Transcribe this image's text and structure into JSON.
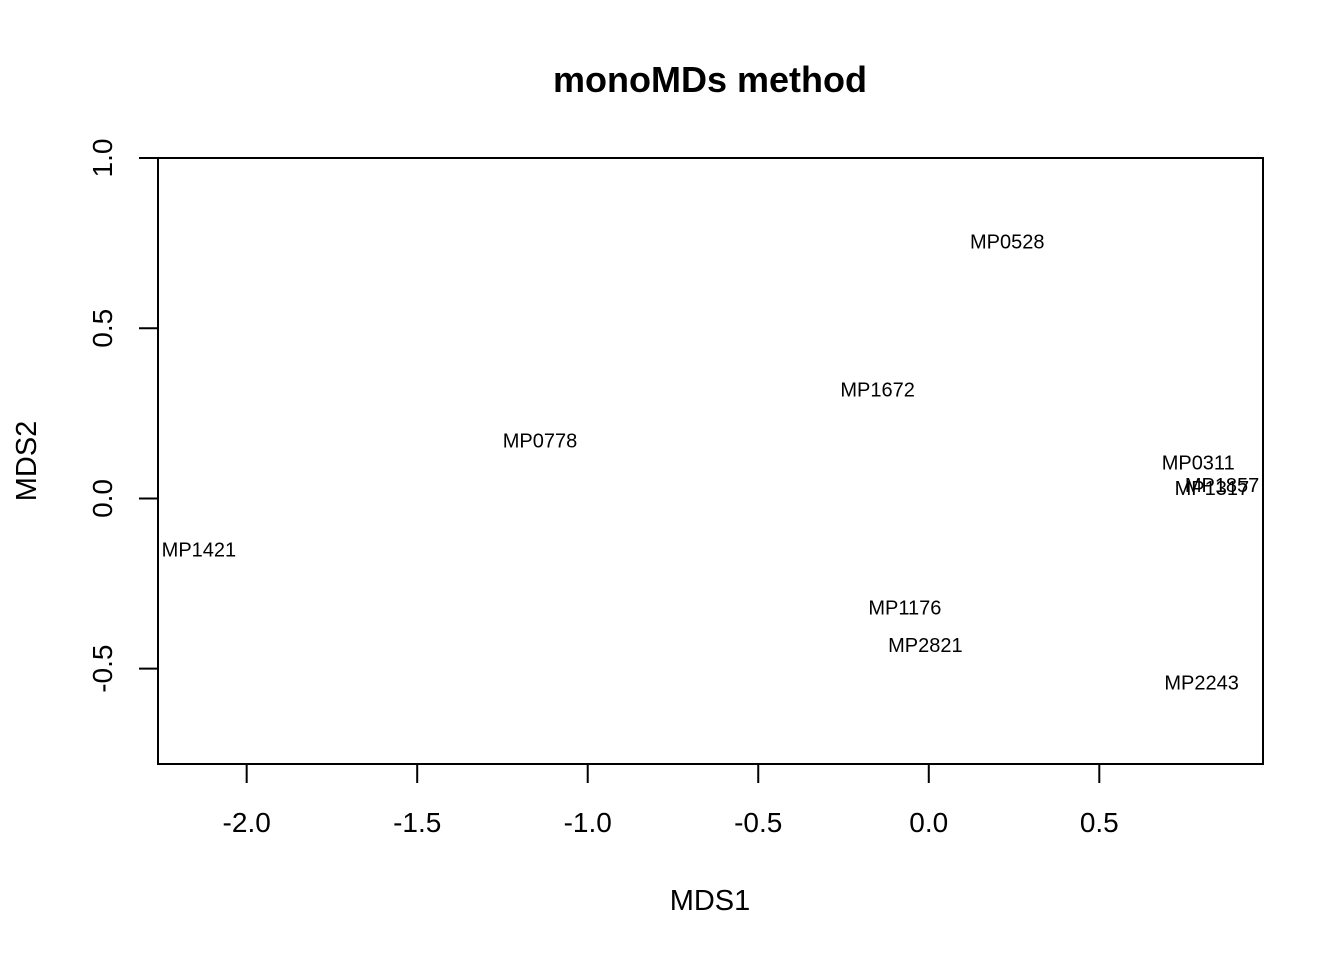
{
  "chart_data": {
    "type": "scatter",
    "title": "monoMDs method",
    "xlabel": "MDS1",
    "ylabel": "MDS2",
    "xlim": [
      -2.26,
      0.98
    ],
    "ylim": [
      -0.78,
      1.0
    ],
    "xticks": [
      -2.0,
      -1.5,
      -1.0,
      -0.5,
      0.0,
      0.5
    ],
    "xtick_labels": [
      "-2.0",
      "-1.5",
      "-1.0",
      "-0.5",
      "0.0",
      "0.5"
    ],
    "yticks": [
      -0.5,
      0.0,
      0.5,
      1.0
    ],
    "ytick_labels": [
      "-0.5",
      "0.0",
      "0.5",
      "1.0"
    ],
    "grid": false,
    "points": [
      {
        "label": "MP0528",
        "x": 0.23,
        "y": 0.755
      },
      {
        "label": "MP1672",
        "x": -0.15,
        "y": 0.32
      },
      {
        "label": "MP0778",
        "x": -1.14,
        "y": 0.17
      },
      {
        "label": "MP0311",
        "x": 0.79,
        "y": 0.105
      },
      {
        "label": "MP1857",
        "x": 0.86,
        "y": 0.04
      },
      {
        "label": "MP1317",
        "x": 0.83,
        "y": 0.03
      },
      {
        "label": "MP1421",
        "x": -2.14,
        "y": -0.15
      },
      {
        "label": "MP1176",
        "x": -0.07,
        "y": -0.32
      },
      {
        "label": "MP2821",
        "x": -0.01,
        "y": -0.43
      },
      {
        "label": "MP2243",
        "x": 0.8,
        "y": -0.54
      }
    ]
  }
}
